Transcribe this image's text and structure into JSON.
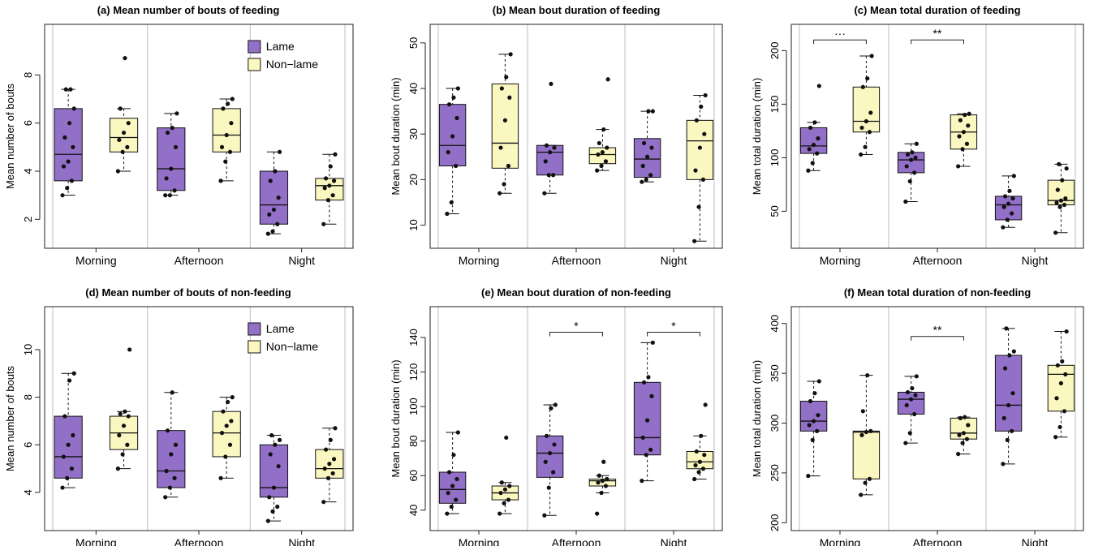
{
  "figure": {
    "colors": {
      "lame": "#9370c8",
      "nonlame": "#fbf7c0",
      "outline": "#111111",
      "divider": "#c8c8c8"
    },
    "legend": {
      "labels": [
        "Lame",
        "Non−lame"
      ]
    }
  },
  "chart_data": [
    {
      "panel": "a",
      "type": "box",
      "title": "(a) Mean number of bouts of feeding",
      "ylabel": "Mean number of bouts",
      "ylim": [
        1,
        9.9
      ],
      "yticks": [
        2,
        4,
        6,
        8
      ],
      "categories": [
        "Morning",
        "Afternoon",
        "Night"
      ],
      "legend": true,
      "legend_position": "top-right",
      "series": [
        {
          "name": "Lame",
          "boxes": [
            {
              "whisker_low": 3.0,
              "q1": 3.6,
              "median": 4.7,
              "q3": 6.6,
              "whisker_high": 7.4,
              "points": [
                3.0,
                3.3,
                3.6,
                4.2,
                4.4,
                5.0,
                5.4,
                6.0,
                6.6,
                7.4,
                7.4
              ]
            },
            {
              "whisker_low": 3.0,
              "q1": 3.2,
              "median": 4.1,
              "q3": 5.8,
              "whisker_high": 6.4,
              "points": [
                3.0,
                3.0,
                3.2,
                3.7,
                4.1,
                5.0,
                5.6,
                5.8,
                6.4
              ]
            },
            {
              "whisker_low": 1.4,
              "q1": 1.8,
              "median": 2.6,
              "q3": 4.0,
              "whisker_high": 4.8,
              "points": [
                1.4,
                1.5,
                1.8,
                2.2,
                2.4,
                2.9,
                3.6,
                4.0,
                4.8
              ]
            }
          ]
        },
        {
          "name": "Non−lame",
          "boxes": [
            {
              "whisker_low": 4.0,
              "q1": 4.8,
              "median": 5.4,
              "q3": 6.2,
              "whisker_high": 6.6,
              "points": [
                4.0,
                4.8,
                5.0,
                5.3,
                5.6,
                6.0,
                6.6,
                8.7
              ]
            },
            {
              "whisker_low": 3.6,
              "q1": 4.8,
              "median": 5.5,
              "q3": 6.6,
              "whisker_high": 7.0,
              "points": [
                3.6,
                4.4,
                4.8,
                5.0,
                5.5,
                6.0,
                6.6,
                6.8,
                7.0
              ]
            },
            {
              "whisker_low": 1.8,
              "q1": 2.8,
              "median": 3.4,
              "q3": 3.7,
              "whisker_high": 4.7,
              "points": [
                1.8,
                2.8,
                3.0,
                3.3,
                3.4,
                3.6,
                3.7,
                4.2,
                4.7
              ]
            }
          ]
        }
      ],
      "annotations": []
    },
    {
      "panel": "b",
      "type": "box",
      "title": "(b) Mean bout duration of feeding",
      "ylabel": "Mean bout duration (min)",
      "ylim": [
        6,
        53
      ],
      "yticks": [
        10,
        20,
        30,
        40,
        50
      ],
      "categories": [
        "Morning",
        "Afternoon",
        "Night"
      ],
      "legend": false,
      "series": [
        {
          "name": "Lame",
          "boxes": [
            {
              "whisker_low": 12.5,
              "q1": 23.0,
              "median": 27.5,
              "q3": 36.5,
              "whisker_high": 40.0,
              "points": [
                12.5,
                15.0,
                23.0,
                26.0,
                29.5,
                33.5,
                36.5,
                38.0,
                40.0
              ]
            },
            {
              "whisker_low": 17.0,
              "q1": 21.0,
              "median": 26.0,
              "q3": 27.5,
              "whisker_high": 27.5,
              "points": [
                17.0,
                21.0,
                21.0,
                24.0,
                26.0,
                27.0,
                27.5,
                41.0
              ]
            },
            {
              "whisker_low": 19.5,
              "q1": 20.5,
              "median": 24.5,
              "q3": 29.0,
              "whisker_high": 35.0,
              "points": [
                19.5,
                20.0,
                21.0,
                23.0,
                25.0,
                27.0,
                28.0,
                35.0,
                35.0
              ]
            }
          ]
        },
        {
          "name": "Non−lame",
          "boxes": [
            {
              "whisker_low": 17.0,
              "q1": 22.5,
              "median": 28.0,
              "q3": 41.0,
              "whisker_high": 47.5,
              "points": [
                17.0,
                19.0,
                23.0,
                27.0,
                33.0,
                38.0,
                40.0,
                42.5,
                47.5
              ]
            },
            {
              "whisker_low": 22.0,
              "q1": 23.5,
              "median": 25.5,
              "q3": 27.0,
              "whisker_high": 31.0,
              "points": [
                22.0,
                23.0,
                24.0,
                25.5,
                26.0,
                27.0,
                28.0,
                31.0,
                42.0
              ]
            },
            {
              "whisker_low": 6.5,
              "q1": 20.0,
              "median": 28.5,
              "q3": 33.0,
              "whisker_high": 38.5,
              "points": [
                6.5,
                14.0,
                20.0,
                22.0,
                27.0,
                30.0,
                33.0,
                36.0,
                38.5
              ]
            }
          ]
        }
      ],
      "annotations": []
    },
    {
      "panel": "c",
      "type": "box",
      "title": "(c) Mean total duration of feeding",
      "ylabel": "Mean total duration (min)",
      "ylim": [
        20,
        220
      ],
      "yticks": [
        50,
        100,
        150,
        200
      ],
      "categories": [
        "Morning",
        "Afternoon",
        "Night"
      ],
      "legend": false,
      "series": [
        {
          "name": "Lame",
          "boxes": [
            {
              "whisker_low": 88,
              "q1": 104,
              "median": 111,
              "q3": 128,
              "whisker_high": 133,
              "points": [
                88,
                95,
                104,
                108,
                112,
                118,
                128,
                133,
                167
              ]
            },
            {
              "whisker_low": 59,
              "q1": 86,
              "median": 98,
              "q3": 105,
              "whisker_high": 113,
              "points": [
                59,
                78,
                86,
                92,
                98,
                100,
                103,
                105,
                113
              ]
            },
            {
              "whisker_low": 35,
              "q1": 42,
              "median": 56,
              "q3": 64,
              "whisker_high": 83,
              "points": [
                35,
                42,
                48,
                54,
                57,
                62,
                64,
                69,
                83
              ]
            }
          ]
        },
        {
          "name": "Non−lame",
          "boxes": [
            {
              "whisker_low": 103,
              "q1": 124,
              "median": 134,
              "q3": 166,
              "whisker_high": 195,
              "points": [
                103,
                110,
                124,
                128,
                134,
                142,
                166,
                174,
                195
              ]
            },
            {
              "whisker_low": 92,
              "q1": 108,
              "median": 124,
              "q3": 140,
              "whisker_high": 141,
              "points": [
                92,
                108,
                113,
                120,
                124,
                130,
                135,
                140,
                141
              ]
            },
            {
              "whisker_low": 30,
              "q1": 56,
              "median": 60,
              "q3": 79,
              "whisker_high": 94,
              "points": [
                30,
                54,
                56,
                58,
                60,
                62,
                70,
                79,
                90,
                94
              ]
            }
          ]
        }
      ],
      "annotations": [
        {
          "category_index": 0,
          "label": "···",
          "y": 210
        },
        {
          "category_index": 1,
          "label": "**",
          "y": 210
        }
      ]
    },
    {
      "panel": "d",
      "type": "box",
      "title": "(d) Mean number of bouts of non-feeding",
      "ylabel": "Mean number of bouts",
      "ylim": [
        2.6,
        11.6
      ],
      "yticks": [
        4,
        6,
        8,
        10
      ],
      "categories": [
        "Morning",
        "Afternoon",
        "Night"
      ],
      "legend": true,
      "legend_position": "top-right",
      "series": [
        {
          "name": "Lame",
          "boxes": [
            {
              "whisker_low": 4.2,
              "q1": 4.6,
              "median": 5.5,
              "q3": 7.2,
              "whisker_high": 9.0,
              "points": [
                4.2,
                4.6,
                5.0,
                5.5,
                6.0,
                6.4,
                7.2,
                8.7,
                9.0
              ]
            },
            {
              "whisker_low": 3.8,
              "q1": 4.2,
              "median": 4.9,
              "q3": 6.6,
              "whisker_high": 8.2,
              "points": [
                3.8,
                4.2,
                4.6,
                4.9,
                5.6,
                6.0,
                6.6,
                8.2
              ]
            },
            {
              "whisker_low": 2.8,
              "q1": 3.8,
              "median": 4.2,
              "q3": 6.0,
              "whisker_high": 6.4,
              "points": [
                2.8,
                3.2,
                3.4,
                3.8,
                4.2,
                5.1,
                5.6,
                6.0,
                6.2,
                6.4
              ]
            }
          ]
        },
        {
          "name": "Non−lame",
          "boxes": [
            {
              "whisker_low": 5.0,
              "q1": 5.8,
              "median": 6.5,
              "q3": 7.2,
              "whisker_high": 7.4,
              "points": [
                5.0,
                5.6,
                6.0,
                6.4,
                6.8,
                7.2,
                7.3,
                7.4,
                10.0
              ]
            },
            {
              "whisker_low": 4.6,
              "q1": 5.5,
              "median": 6.5,
              "q3": 7.4,
              "whisker_high": 8.0,
              "points": [
                4.6,
                5.5,
                6.0,
                6.5,
                6.8,
                7.0,
                7.4,
                7.8,
                8.0
              ]
            },
            {
              "whisker_low": 3.6,
              "q1": 4.6,
              "median": 5.0,
              "q3": 5.8,
              "whisker_high": 6.7,
              "points": [
                3.6,
                4.6,
                4.8,
                5.0,
                5.2,
                5.4,
                5.8,
                6.2,
                6.7
              ]
            }
          ]
        }
      ],
      "annotations": []
    },
    {
      "panel": "e",
      "type": "box",
      "title": "(e) Mean bout duration of non-feeding",
      "ylabel": "Mean bout duration (min)",
      "ylim": [
        31,
        155
      ],
      "yticks": [
        40,
        60,
        80,
        100,
        120,
        140
      ],
      "categories": [
        "Morning",
        "Afternoon",
        "Night"
      ],
      "legend": false,
      "series": [
        {
          "name": "Lame",
          "boxes": [
            {
              "whisker_low": 38,
              "q1": 44,
              "median": 52,
              "q3": 62,
              "whisker_high": 85,
              "points": [
                38,
                42,
                46,
                50,
                54,
                58,
                62,
                72,
                85
              ]
            },
            {
              "whisker_low": 37,
              "q1": 59,
              "median": 73,
              "q3": 83,
              "whisker_high": 101,
              "points": [
                37,
                53,
                62,
                68,
                73,
                78,
                83,
                99,
                101
              ]
            },
            {
              "whisker_low": 57,
              "q1": 72,
              "median": 82,
              "q3": 114,
              "whisker_high": 137,
              "points": [
                57,
                72,
                75,
                82,
                92,
                106,
                114,
                117,
                137
              ]
            }
          ]
        },
        {
          "name": "Non−lame",
          "boxes": [
            {
              "whisker_low": 38,
              "q1": 46,
              "median": 50,
              "q3": 54,
              "whisker_high": 56,
              "points": [
                38,
                44,
                46,
                50,
                52,
                54,
                56,
                82
              ]
            },
            {
              "whisker_low": 50,
              "q1": 54,
              "median": 57,
              "q3": 58,
              "whisker_high": 60,
              "points": [
                38,
                50,
                54,
                56,
                57,
                58,
                60,
                68
              ]
            },
            {
              "whisker_low": 58,
              "q1": 64,
              "median": 68,
              "q3": 74,
              "whisker_high": 83,
              "points": [
                58,
                62,
                64,
                66,
                68,
                72,
                74,
                83,
                101
              ]
            }
          ]
        }
      ],
      "annotations": [
        {
          "category_index": 1,
          "label": "*",
          "y": 143
        },
        {
          "category_index": 2,
          "label": "*",
          "y": 143
        }
      ]
    },
    {
      "panel": "f",
      "type": "box",
      "title": "(f) Mean total duration of non-feeding",
      "ylabel": "Mean total duration (min)",
      "ylim": [
        197,
        412
      ],
      "yticks": [
        200,
        250,
        300,
        350,
        400
      ],
      "categories": [
        "Morning",
        "Afternoon",
        "Night"
      ],
      "legend": false,
      "series": [
        {
          "name": "Lame",
          "boxes": [
            {
              "whisker_low": 247,
              "q1": 292,
              "median": 302,
              "q3": 322,
              "whisker_high": 342,
              "points": [
                247,
                283,
                292,
                298,
                302,
                308,
                322,
                330,
                342
              ]
            },
            {
              "whisker_low": 280,
              "q1": 309,
              "median": 324,
              "q3": 331,
              "whisker_high": 347,
              "points": [
                280,
                290,
                309,
                318,
                324,
                328,
                331,
                335,
                347
              ]
            },
            {
              "whisker_low": 259,
              "q1": 292,
              "median": 318,
              "q3": 368,
              "whisker_high": 395,
              "points": [
                259,
                283,
                292,
                305,
                318,
                330,
                355,
                368,
                372,
                395
              ]
            }
          ]
        },
        {
          "name": "Non−lame",
          "boxes": [
            {
              "whisker_low": 228,
              "q1": 244,
              "median": 291,
              "q3": 292,
              "whisker_high": 348,
              "points": [
                228,
                240,
                244,
                288,
                291,
                292,
                312,
                348
              ]
            },
            {
              "whisker_low": 269,
              "q1": 284,
              "median": 290,
              "q3": 305,
              "whisker_high": 306,
              "points": [
                269,
                280,
                284,
                288,
                290,
                298,
                305,
                306
              ]
            },
            {
              "whisker_low": 286,
              "q1": 312,
              "median": 349,
              "q3": 358,
              "whisker_high": 392,
              "points": [
                286,
                296,
                312,
                325,
                340,
                349,
                358,
                362,
                392
              ]
            }
          ]
        }
      ],
      "annotations": [
        {
          "category_index": 1,
          "label": "**",
          "y": 387
        }
      ]
    }
  ]
}
